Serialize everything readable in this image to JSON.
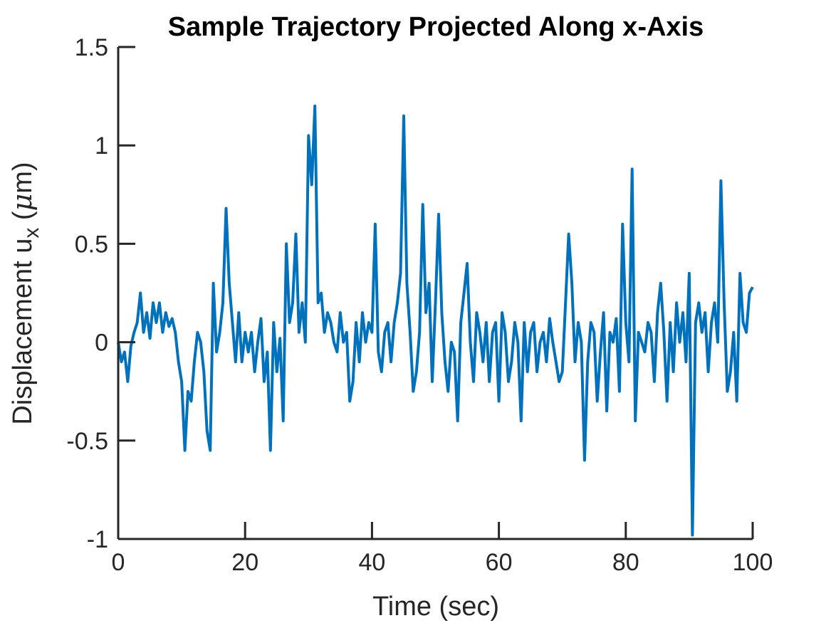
{
  "chart_data": {
    "type": "line",
    "title": "Sample Trajectory Projected Along x-Axis",
    "xlabel": "Time (sec)",
    "ylabel": {
      "prefix": "Displacement u",
      "subscript": "x",
      "unit_open": " (",
      "unit_mu": "μ",
      "unit_rest": "m)"
    },
    "xlim": [
      0,
      100
    ],
    "ylim": [
      -1,
      1.5
    ],
    "xticks": [
      0,
      20,
      40,
      60,
      80,
      100
    ],
    "xtick_labels": [
      "0",
      "20",
      "40",
      "60",
      "80",
      "100"
    ],
    "yticks": [
      -1,
      -0.5,
      0,
      0.5,
      1,
      1.5
    ],
    "ytick_labels": [
      "-1",
      "-0.5",
      "0",
      "0.5",
      "1",
      "1.5"
    ],
    "grid": false,
    "box": "left-bottom axes only",
    "line_color": "#0072BD",
    "axis_color": "#262626",
    "series": [
      {
        "x": [
          0,
          0.5,
          1,
          1.5,
          2,
          2.5,
          3,
          3.5,
          4,
          4.5,
          5,
          5.5,
          6,
          6.5,
          7,
          7.5,
          8,
          8.5,
          9,
          9.5,
          10,
          10.5,
          11,
          11.5,
          12,
          12.5,
          13,
          13.5,
          14,
          14.5,
          15,
          15.5,
          16,
          16.5,
          17,
          17.5,
          18,
          18.5,
          19,
          19.5,
          20,
          20.5,
          21,
          21.5,
          22,
          22.5,
          23,
          23.5,
          24,
          24.5,
          25,
          25.5,
          26,
          26.5,
          27,
          27.5,
          28,
          28.5,
          29,
          29.5,
          30,
          30.5,
          31,
          31.5,
          32,
          32.5,
          33,
          33.5,
          34,
          34.5,
          35,
          35.5,
          36,
          36.5,
          37,
          37.5,
          38,
          38.5,
          39,
          39.5,
          40,
          40.5,
          41,
          41.5,
          42,
          42.5,
          43,
          43.5,
          44,
          44.5,
          45,
          45.5,
          46,
          46.5,
          47,
          47.5,
          48,
          48.5,
          49,
          49.5,
          50,
          50.5,
          51,
          51.5,
          52,
          52.5,
          53,
          53.5,
          54,
          54.5,
          55,
          55.5,
          56,
          56.5,
          57,
          57.5,
          58,
          58.5,
          59,
          59.5,
          60,
          60.5,
          61,
          61.5,
          62,
          62.5,
          63,
          63.5,
          64,
          64.5,
          65,
          65.5,
          66,
          66.5,
          67,
          67.5,
          68,
          68.5,
          69,
          69.5,
          70,
          70.5,
          71,
          71.5,
          72,
          72.5,
          73,
          73.5,
          74,
          74.5,
          75,
          75.5,
          76,
          76.5,
          77,
          77.5,
          78,
          78.5,
          79,
          79.5,
          80,
          80.5,
          81,
          81.5,
          82,
          82.5,
          83,
          83.5,
          84,
          84.5,
          85,
          85.5,
          86,
          86.5,
          87,
          87.5,
          88,
          88.5,
          89,
          89.5,
          90,
          90.5,
          91,
          91.5,
          92,
          92.5,
          93,
          93.5,
          94,
          94.5,
          95,
          95.5,
          96,
          96.5,
          97,
          97.5,
          98,
          98.5,
          99,
          99.5,
          100
        ],
        "y": [
          0.0,
          -0.1,
          -0.05,
          -0.2,
          -0.02,
          0.05,
          0.1,
          0.25,
          0.05,
          0.15,
          0.02,
          0.2,
          0.1,
          0.2,
          0.05,
          0.15,
          0.08,
          0.12,
          0.05,
          -0.1,
          -0.2,
          -0.55,
          -0.25,
          -0.3,
          -0.1,
          0.05,
          0.0,
          -0.15,
          -0.45,
          -0.55,
          0.3,
          -0.05,
          0.05,
          0.2,
          0.68,
          0.3,
          0.1,
          -0.1,
          0.15,
          -0.1,
          0.05,
          -0.05,
          0.05,
          -0.15,
          0.0,
          0.12,
          -0.2,
          -0.05,
          -0.55,
          0.1,
          -0.15,
          0.02,
          -0.4,
          0.5,
          0.1,
          0.2,
          0.55,
          0.05,
          0.2,
          0.0,
          1.05,
          0.8,
          1.2,
          0.2,
          0.25,
          0.05,
          0.15,
          0.1,
          0.0,
          -0.05,
          0.15,
          0.0,
          0.05,
          -0.3,
          -0.2,
          0.1,
          -0.1,
          0.15,
          0.0,
          0.1,
          0.05,
          0.6,
          -0.05,
          -0.15,
          0.05,
          0.1,
          -0.1,
          0.1,
          0.2,
          0.35,
          1.15,
          0.3,
          0.05,
          -0.25,
          -0.15,
          0.05,
          0.7,
          0.15,
          0.3,
          -0.2,
          0.2,
          0.65,
          0.15,
          -0.1,
          -0.25,
          0.0,
          -0.05,
          -0.4,
          0.1,
          0.25,
          0.4,
          0.0,
          -0.2,
          0.15,
          0.05,
          -0.1,
          0.1,
          -0.2,
          0.05,
          0.1,
          -0.3,
          0.15,
          0.05,
          -0.2,
          -0.1,
          0.1,
          0.0,
          -0.4,
          0.1,
          -0.15,
          0.05,
          0.1,
          -0.15,
          0.0,
          0.05,
          -0.1,
          0.12,
          0.0,
          -0.1,
          -0.2,
          -0.15,
          0.2,
          0.55,
          0.3,
          -0.1,
          0.1,
          0.0,
          -0.6,
          -0.1,
          0.1,
          0.05,
          -0.3,
          -0.05,
          0.15,
          -0.35,
          0.05,
          0.0,
          0.12,
          -0.25,
          0.6,
          0.1,
          -0.1,
          0.88,
          -0.4,
          0.05,
          0.0,
          -0.05,
          0.1,
          0.05,
          -0.2,
          0.15,
          0.3,
          0.05,
          -0.3,
          0.1,
          -0.15,
          0.2,
          0.0,
          0.15,
          -0.1,
          0.35,
          -0.98,
          0.1,
          0.2,
          0.05,
          0.15,
          -0.15,
          0.1,
          0.2,
          0.0,
          0.82,
          0.2,
          -0.25,
          -0.15,
          0.05,
          -0.3,
          0.35,
          0.1,
          0.05,
          0.25,
          0.28
        ]
      }
    ]
  }
}
